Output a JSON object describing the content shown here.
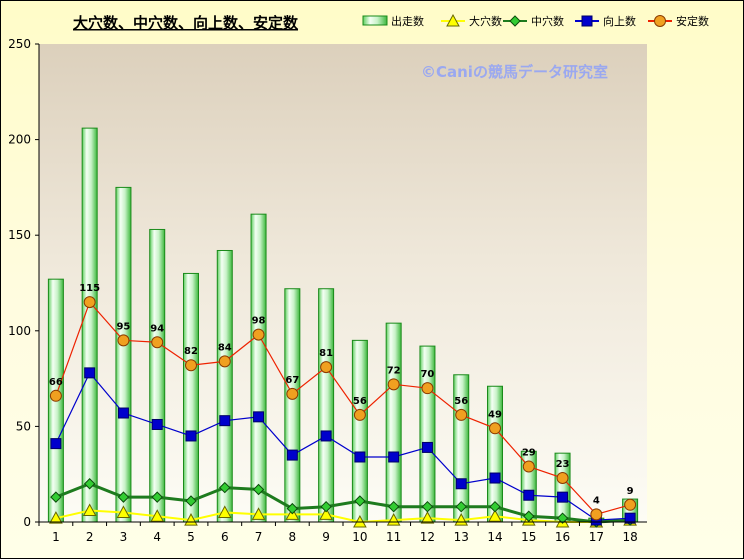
{
  "chart_data": {
    "type": "bar",
    "title": "大穴数、中穴数、向上数、安定数",
    "watermark": "©Caniの競馬データ研究室",
    "categories": [
      "1",
      "2",
      "3",
      "4",
      "5",
      "6",
      "7",
      "8",
      "9",
      "10",
      "11",
      "12",
      "13",
      "14",
      "15",
      "16",
      "17",
      "18"
    ],
    "ylim": [
      0,
      250
    ],
    "yticks": [
      "0",
      "50",
      "100",
      "150",
      "200",
      "250"
    ],
    "grid": false,
    "legend_position": "top-right",
    "series": [
      {
        "name": "出走数",
        "type": "bar",
        "color": "#22aa22",
        "values": [
          127,
          206,
          175,
          153,
          130,
          142,
          161,
          122,
          122,
          95,
          104,
          92,
          77,
          71,
          37,
          36,
          2,
          12
        ]
      },
      {
        "name": "大穴数",
        "type": "line",
        "color": "#ffff00",
        "marker": "triangle",
        "values": [
          2,
          6,
          5,
          3,
          1,
          5,
          4,
          4,
          4,
          0,
          1,
          2,
          1,
          3,
          1,
          0,
          0,
          1
        ]
      },
      {
        "name": "中穴数",
        "type": "line",
        "color": "#1e7b1e",
        "marker": "diamond",
        "values": [
          13,
          20,
          13,
          13,
          11,
          18,
          17,
          7,
          8,
          11,
          8,
          8,
          8,
          8,
          3,
          2,
          0,
          1
        ]
      },
      {
        "name": "向上数",
        "type": "line",
        "color": "#0000cc",
        "marker": "square",
        "values": [
          41,
          78,
          57,
          51,
          45,
          53,
          55,
          35,
          45,
          34,
          34,
          39,
          20,
          23,
          14,
          13,
          1,
          2
        ]
      },
      {
        "name": "安定数",
        "type": "line",
        "color": "#ee2200",
        "marker": "circle",
        "values": [
          66,
          115,
          95,
          94,
          82,
          84,
          98,
          67,
          81,
          56,
          72,
          70,
          56,
          49,
          29,
          23,
          4,
          9
        ]
      }
    ],
    "data_labels": {
      "series": "安定数",
      "values": [
        "66",
        "115",
        "95",
        "94",
        "82",
        "84",
        "98",
        "67",
        "81",
        "56",
        "72",
        "70",
        "56",
        "49",
        "29",
        "23",
        "4",
        "9"
      ]
    }
  }
}
